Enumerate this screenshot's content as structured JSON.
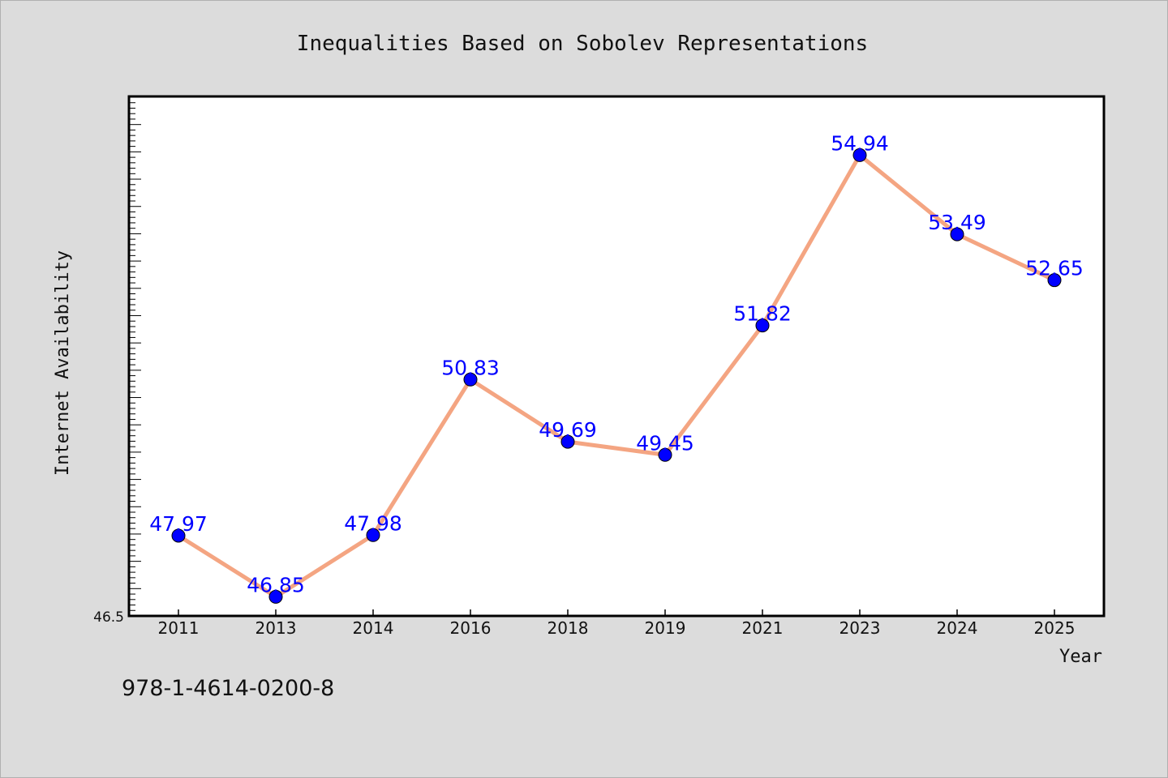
{
  "chart_data": {
    "type": "line",
    "title": "Inequalities Based on Sobolev Representations",
    "xlabel": "Year",
    "ylabel": "Internet Availability",
    "categories": [
      "2011",
      "2013",
      "2014",
      "2016",
      "2018",
      "2019",
      "2021",
      "2023",
      "2024",
      "2025"
    ],
    "values": [
      47.97,
      46.85,
      47.98,
      50.83,
      49.69,
      49.45,
      51.82,
      54.94,
      53.49,
      52.65
    ],
    "value_labels": [
      "47.97",
      "46.85",
      "47.98",
      "50.83",
      "49.69",
      "49.45",
      "51.82",
      "54.94",
      "53.49",
      "52.65"
    ],
    "ylim": [
      46.5,
      56
    ],
    "y_tick_label": "46.5",
    "grid": false,
    "line_color": "#f4a582",
    "marker_color": "#0000ff",
    "label_color": "#0000ff"
  },
  "footer": {
    "isbn": "978-1-4614-0200-8"
  }
}
